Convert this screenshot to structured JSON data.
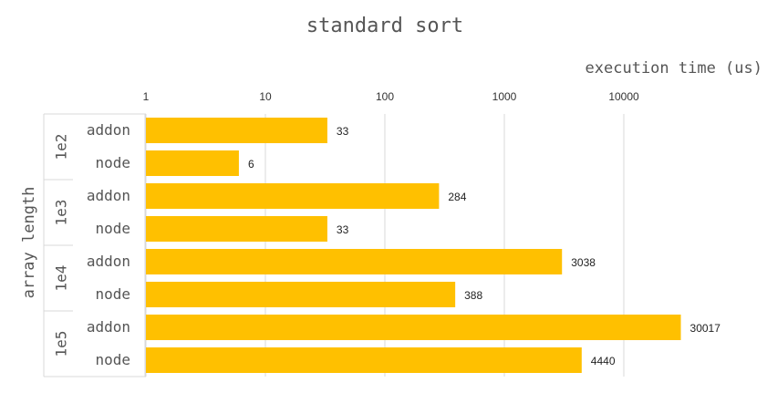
{
  "chart_data": {
    "type": "bar",
    "orientation": "horizontal",
    "title": "standard sort",
    "xlabel": "execution time (us)",
    "ylabel": "array length",
    "x_scale": "log",
    "xlim": [
      1,
      100000
    ],
    "x_ticks": [
      "1",
      "10",
      "100",
      "1000",
      "10000"
    ],
    "groups": [
      {
        "label": "1e2",
        "bars": [
          {
            "category": "addon",
            "value": 33
          },
          {
            "category": "node",
            "value": 6
          }
        ]
      },
      {
        "label": "1e3",
        "bars": [
          {
            "category": "addon",
            "value": 284
          },
          {
            "category": "node",
            "value": 33
          }
        ]
      },
      {
        "label": "1e4",
        "bars": [
          {
            "category": "addon",
            "value": 3038
          },
          {
            "category": "node",
            "value": 388
          }
        ]
      },
      {
        "label": "1e5",
        "bars": [
          {
            "category": "addon",
            "value": 30017
          },
          {
            "category": "node",
            "value": 4440
          }
        ]
      }
    ],
    "bar_color": "#FFC000",
    "grid": true,
    "legend": "none"
  }
}
